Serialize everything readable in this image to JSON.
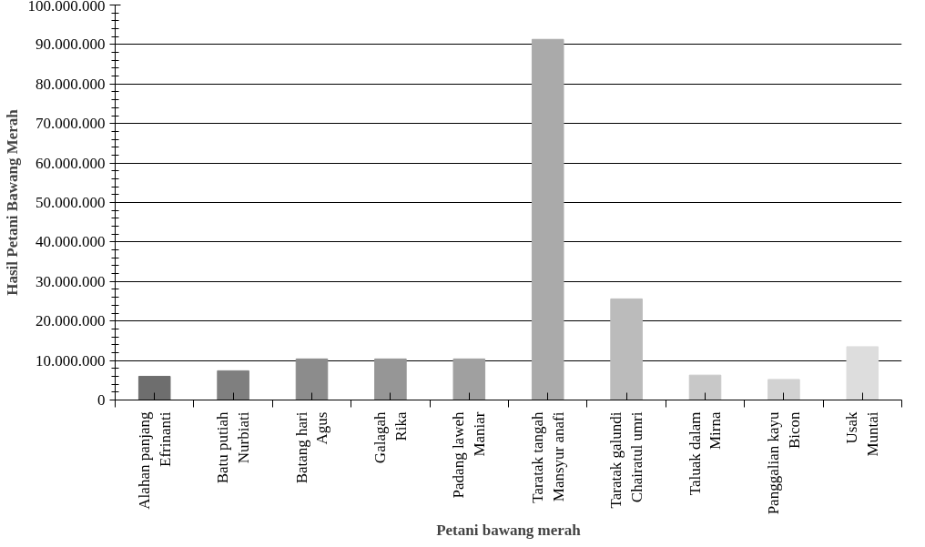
{
  "chart_data": {
    "type": "bar",
    "xlabel": "Petani bawang merah",
    "ylabel": "Hasil Petani Bawang Merah",
    "categories": [
      "Alahan panjang\nEfrinanti",
      "Batu putiah\nNurbiati",
      "Batang hari\nAgus",
      "Galagah\nRika",
      "Padang laweh\nManiar",
      "Taratak tangah\nMansyur anafi",
      "Taratak galundi\nChairatul umri",
      "Taluak dalam\nMirna",
      "Panggalian kayu\nBicon",
      "Usak\nMuntai"
    ],
    "values": [
      6000000,
      7400000,
      10400000,
      10400000,
      10400000,
      91300000,
      25600000,
      6300000,
      5200000,
      13500000
    ],
    "colors": [
      "#6e6e6e",
      "#7f7f7f",
      "#8c8c8c",
      "#969696",
      "#a0a0a0",
      "#aaaaaa",
      "#bbbbbb",
      "#c8c8c8",
      "#d2d2d2",
      "#dddddd"
    ],
    "ylim": [
      0,
      100000000
    ],
    "yticks": [
      0,
      {
        "value": 10000000,
        "label": "10.000.000"
      },
      {
        "value": 20000000,
        "label": "20.000.000"
      },
      {
        "value": 30000000,
        "label": "30.000.000"
      },
      {
        "value": 40000000,
        "label": "40.000.000"
      },
      {
        "value": 50000000,
        "label": "50.000.000"
      },
      {
        "value": 60000000,
        "label": "60.000.000"
      },
      {
        "value": 70000000,
        "label": "70.000.000"
      },
      {
        "value": 80000000,
        "label": "80.000.000"
      },
      {
        "value": 90000000,
        "label": "90.000.000"
      },
      {
        "value": 100000000,
        "label": "100.000.000"
      }
    ],
    "grid": "y"
  }
}
